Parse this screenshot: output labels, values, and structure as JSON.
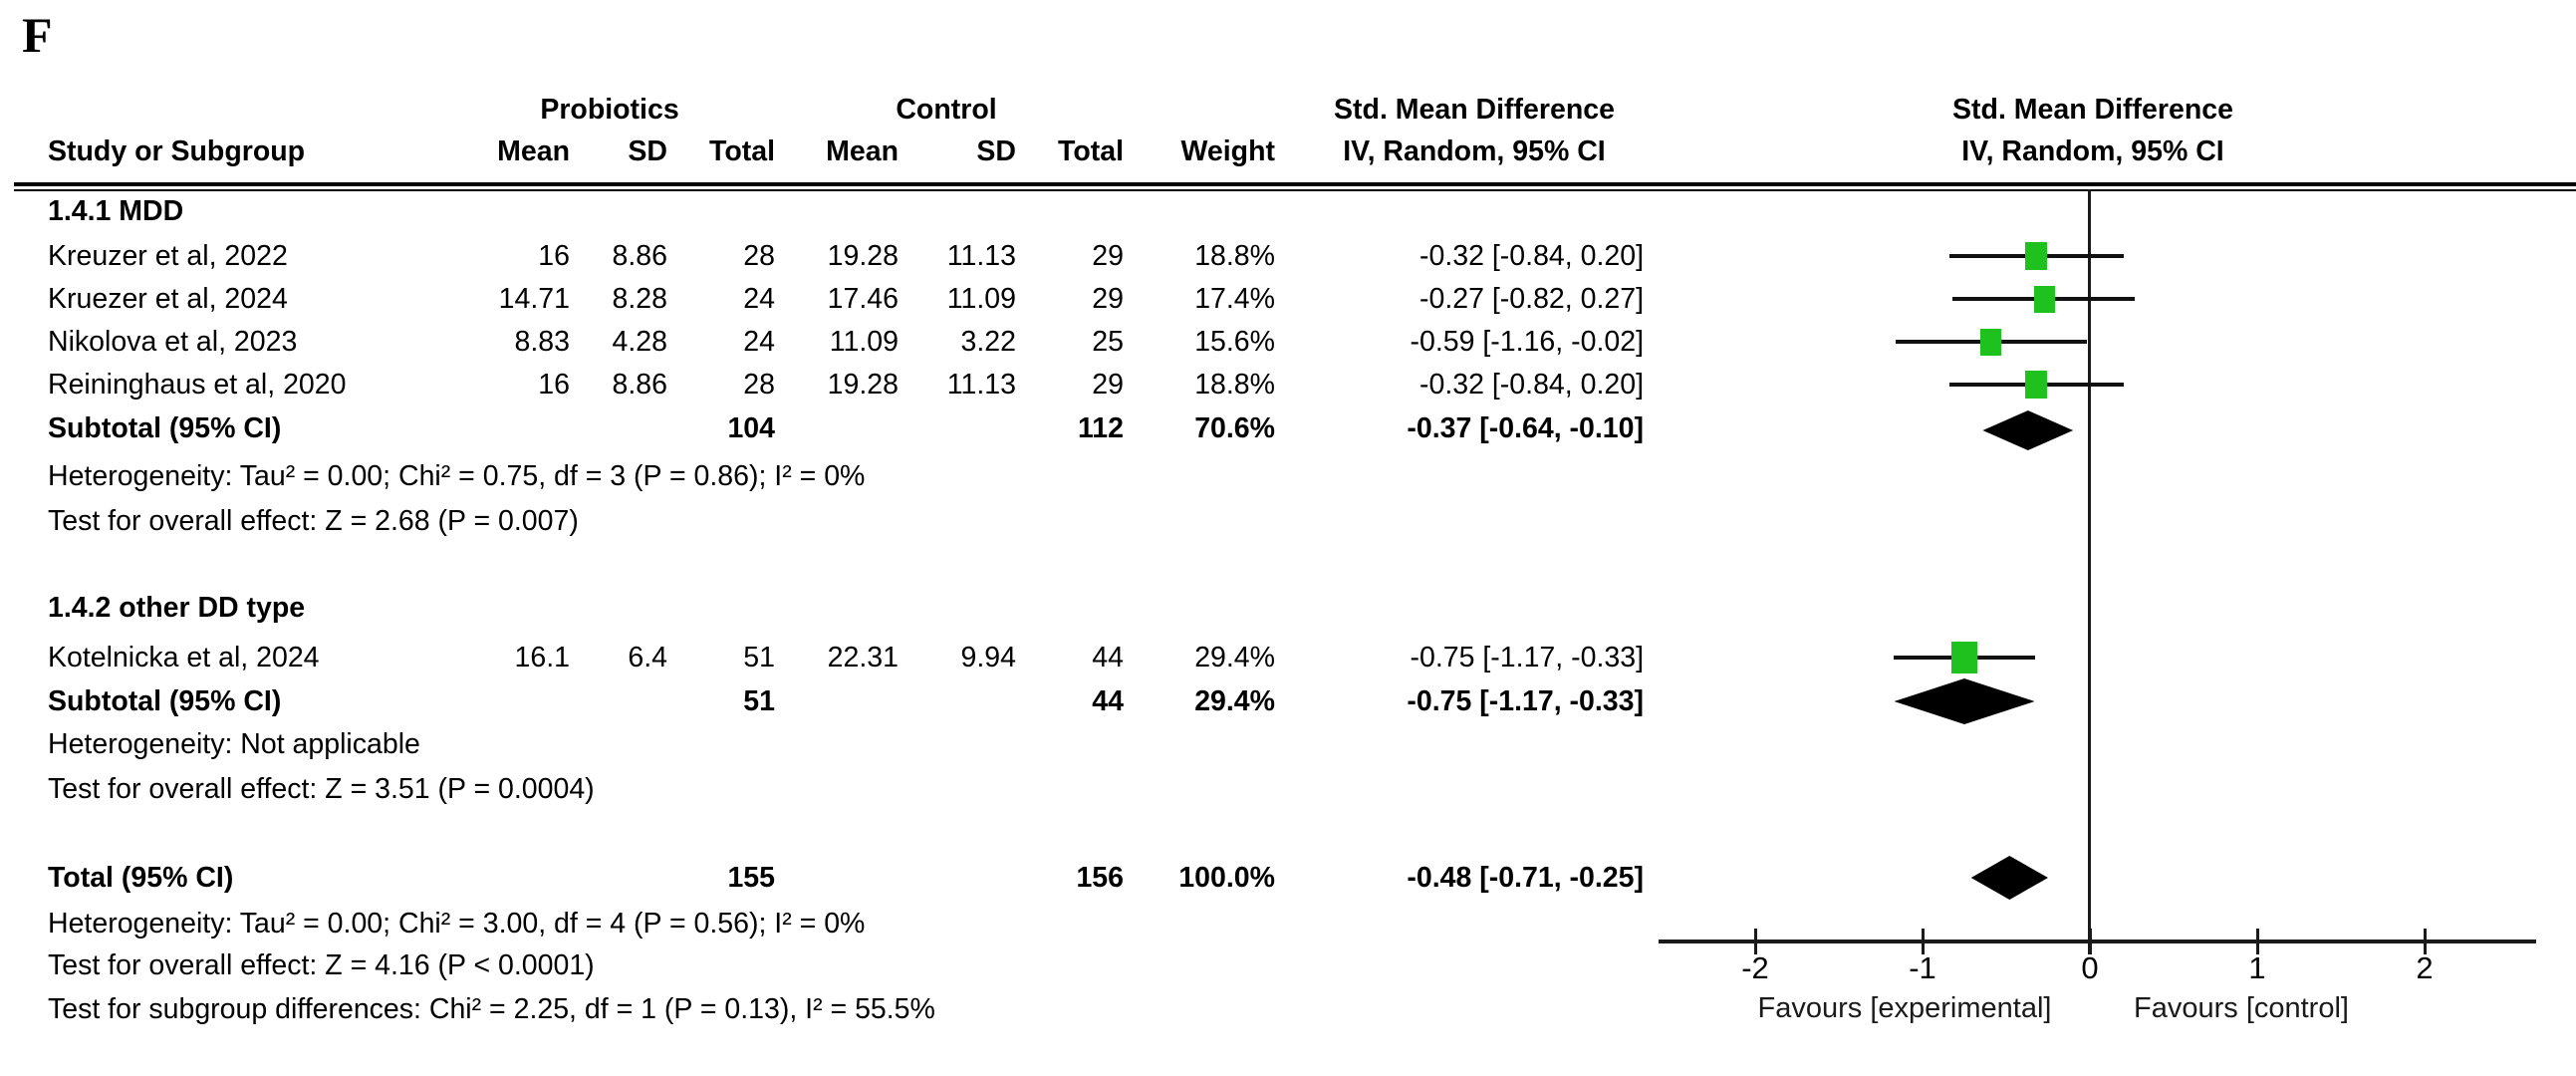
{
  "figure_label": "F",
  "table": {
    "header": {
      "group1": "Probiotics",
      "group2": "Control",
      "effect_title": "Std. Mean Difference",
      "effect_subtitle": "IV, Random, 95% CI",
      "plot_title": "Std. Mean Difference",
      "plot_subtitle": "IV, Random, 95% CI",
      "study_col": "Study or Subgroup",
      "mean": "Mean",
      "sd": "SD",
      "total": "Total",
      "weight": "Weight"
    },
    "sections": [
      {
        "title": "1.4.1 MDD",
        "studies": [
          {
            "study": "Kreuzer et al, 2022",
            "mean1": "16",
            "sd1": "8.86",
            "total1": "28",
            "mean2": "19.28",
            "sd2": "11.13",
            "total2": "29",
            "weight": "18.8%",
            "ci": "-0.32 [-0.84, 0.20]"
          },
          {
            "study": "Kruezer et al, 2024",
            "mean1": "14.71",
            "sd1": "8.28",
            "total1": "24",
            "mean2": "17.46",
            "sd2": "11.09",
            "total2": "29",
            "weight": "17.4%",
            "ci": "-0.27 [-0.82, 0.27]"
          },
          {
            "study": "Nikolova et al, 2023",
            "mean1": "8.83",
            "sd1": "4.28",
            "total1": "24",
            "mean2": "11.09",
            "sd2": "3.22",
            "total2": "25",
            "weight": "15.6%",
            "ci": "-0.59 [-1.16, -0.02]"
          },
          {
            "study": "Reininghaus et al, 2020",
            "mean1": "16",
            "sd1": "8.86",
            "total1": "28",
            "mean2": "19.28",
            "sd2": "11.13",
            "total2": "29",
            "weight": "18.8%",
            "ci": "-0.32 [-0.84, 0.20]"
          }
        ],
        "subtotal": {
          "label": "Subtotal (95% CI)",
          "total1": "104",
          "total2": "112",
          "weight": "70.6%",
          "ci": "-0.37 [-0.64, -0.10]"
        },
        "heterogeneity": "Heterogeneity: Tau² = 0.00; Chi² = 0.75, df = 3 (P = 0.86); I² = 0%",
        "overall_effect": "Test for overall effect: Z = 2.68 (P = 0.007)"
      },
      {
        "title": "1.4.2 other DD type",
        "studies": [
          {
            "study": "Kotelnicka et al, 2024",
            "mean1": "16.1",
            "sd1": "6.4",
            "total1": "51",
            "mean2": "22.31",
            "sd2": "9.94",
            "total2": "44",
            "weight": "29.4%",
            "ci": "-0.75 [-1.17, -0.33]"
          }
        ],
        "subtotal": {
          "label": "Subtotal (95% CI)",
          "total1": "51",
          "total2": "44",
          "weight": "29.4%",
          "ci": "-0.75 [-1.17, -0.33]"
        },
        "heterogeneity": "Heterogeneity: Not applicable",
        "overall_effect": "Test for overall effect: Z = 3.51 (P = 0.0004)"
      }
    ],
    "total": {
      "label": "Total (95% CI)",
      "total1": "155",
      "total2": "156",
      "weight": "100.0%",
      "ci": "-0.48 [-0.71, -0.25]"
    },
    "footer": {
      "heterogeneity": "Heterogeneity: Tau² = 0.00; Chi² = 3.00, df = 4 (P = 0.56); I² = 0%",
      "overall_effect": "Test for overall effect: Z = 4.16 (P < 0.0001)",
      "subgroup_differences": "Test for subgroup differences: Chi² = 2.25, df = 1 (P = 0.13), I² = 55.5%"
    }
  },
  "axis": {
    "ticks": [
      "-2",
      "-1",
      "0",
      "1",
      "2"
    ],
    "favours_left": "Favours [experimental]",
    "favours_right": "Favours [control]"
  },
  "chart_data": {
    "type": "forest",
    "title": "Std. Mean Difference, IV, Random, 95% CI",
    "effect_measure": "Std. Mean Difference",
    "model": "IV, Random, 95% CI",
    "x_axis": {
      "ticks": [
        -2,
        -1,
        0,
        1,
        2
      ],
      "range": [
        -2.6,
        2.65
      ],
      "zero_line": 0,
      "label_left": "Favours [experimental]",
      "label_right": "Favours [control]"
    },
    "marker_color": "#1fc11f",
    "diamond_color": "#000000",
    "rows": [
      {
        "kind": "study",
        "label": "Kreuzer et al, 2022",
        "smd": -0.32,
        "ci_low": -0.84,
        "ci_high": 0.2,
        "weight_pct": 18.8
      },
      {
        "kind": "study",
        "label": "Kruezer et al, 2024",
        "smd": -0.27,
        "ci_low": -0.82,
        "ci_high": 0.27,
        "weight_pct": 17.4
      },
      {
        "kind": "study",
        "label": "Nikolova et al, 2023",
        "smd": -0.59,
        "ci_low": -1.16,
        "ci_high": -0.02,
        "weight_pct": 15.6
      },
      {
        "kind": "study",
        "label": "Reininghaus et al, 2020",
        "smd": -0.32,
        "ci_low": -0.84,
        "ci_high": 0.2,
        "weight_pct": 18.8
      },
      {
        "kind": "diamond",
        "label": "Subtotal 1.4.1 MDD",
        "smd": -0.37,
        "ci_low": -0.64,
        "ci_high": -0.1
      },
      {
        "kind": "study",
        "label": "Kotelnicka et al, 2024",
        "smd": -0.75,
        "ci_low": -1.17,
        "ci_high": -0.33,
        "weight_pct": 29.4
      },
      {
        "kind": "diamond",
        "label": "Subtotal 1.4.2 other DD type",
        "smd": -0.75,
        "ci_low": -1.17,
        "ci_high": -0.33
      },
      {
        "kind": "diamond",
        "label": "Total",
        "smd": -0.48,
        "ci_low": -0.71,
        "ci_high": -0.25
      }
    ]
  }
}
